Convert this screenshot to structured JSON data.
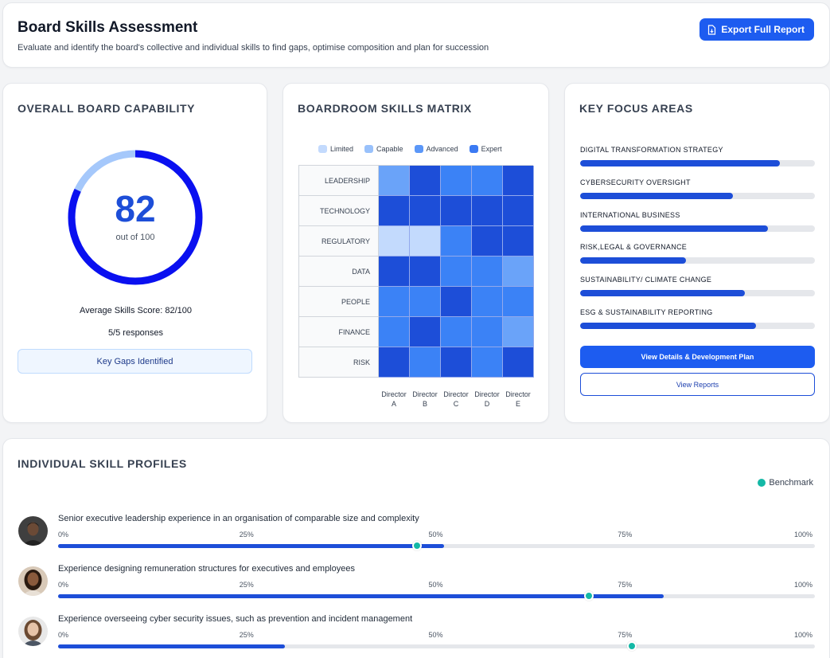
{
  "header": {
    "title": "Board Skills Assessment",
    "subtitle": "Evaluate and identify the board's collective and individual skills to find gaps, optimise composition and plan for succession",
    "export_label": "Export Full Report"
  },
  "capability": {
    "title": "OVERALL BOARD CAPABILITY",
    "score": "82",
    "score_sub": "out of 100",
    "score_fraction": 0.82,
    "avg_label": "Average Skills Score: 82/100",
    "responses": "5/5 responses",
    "gaps_button": "Key Gaps Identified",
    "colors": {
      "fill": "#0a10f0",
      "track": "#a5c8fb"
    }
  },
  "matrix": {
    "title": "BOARDROOM SKILLS MATRIX",
    "legend": [
      {
        "label": "Limited",
        "color": "#c3dafd"
      },
      {
        "label": "Capable",
        "color": "#99c1fb"
      },
      {
        "label": "Advanced",
        "color": "#5b97f8"
      },
      {
        "label": "Expert",
        "color": "#3b7af3"
      }
    ],
    "rows": [
      "LEADERSHIP",
      "TECHNOLOGY",
      "REGULATORY",
      "DATA",
      "PEOPLE",
      "FINANCE",
      "RISK"
    ],
    "columns": [
      {
        "line1": "Director",
        "line2": "A"
      },
      {
        "line1": "Director",
        "line2": "B"
      },
      {
        "line1": "Director",
        "line2": "C"
      },
      {
        "line1": "Director",
        "line2": "D"
      },
      {
        "line1": "Director",
        "line2": "E"
      }
    ],
    "cell_colors": [
      [
        "#6aa3f9",
        "#1d4ed8",
        "#3b82f6",
        "#3b82f6",
        "#1d4ed8"
      ],
      [
        "#1d4ed8",
        "#1d4ed8",
        "#1d4ed8",
        "#1d4ed8",
        "#1d4ed8"
      ],
      [
        "#c3dafd",
        "#c3dafd",
        "#3b82f6",
        "#1d4ed8",
        "#1d4ed8"
      ],
      [
        "#1d4ed8",
        "#1d4ed8",
        "#3b82f6",
        "#3b82f6",
        "#6aa3f9"
      ],
      [
        "#3b82f6",
        "#3b82f6",
        "#1d4ed8",
        "#3b82f6",
        "#3b82f6"
      ],
      [
        "#3b82f6",
        "#1d4ed8",
        "#3b82f6",
        "#3b82f6",
        "#6aa3f9"
      ],
      [
        "#1d4ed8",
        "#3b82f6",
        "#1d4ed8",
        "#3b82f6",
        "#1d4ed8"
      ]
    ]
  },
  "focus": {
    "title": "KEY FOCUS AREAS",
    "items": [
      {
        "label": "DIGITAL TRANSFORMATION STRATEGY",
        "value": 0.85
      },
      {
        "label": "CYBERSECURITY OVERSIGHT",
        "value": 0.65
      },
      {
        "label": "INTERNATIONAL BUSINESS",
        "value": 0.8
      },
      {
        "label": "RISK,LEGAL & GOVERNANCE",
        "value": 0.45
      },
      {
        "label": "SUSTAINABILITY/ CLIMATE CHANGE",
        "value": 0.7
      },
      {
        "label": "ESG & SUSTAINABILITY REPORTING",
        "value": 0.75
      }
    ],
    "details_button": "View Details & Development Plan",
    "reports_button": "View Reports"
  },
  "profiles": {
    "title": "INDIVIDUAL SKILL PROFILES",
    "benchmark_label": "Benchmark",
    "ticks": [
      "0%",
      "25%",
      "50%",
      "75%",
      "100%"
    ],
    "items": [
      {
        "text": "Senior executive leadership experience in an organisation of comparable size and complexity",
        "value": 0.51,
        "benchmark": 0.474,
        "avatar": "avatar-man-icon"
      },
      {
        "text": "Experience designing remuneration structures for executives and employees",
        "value": 0.8,
        "benchmark": 0.701,
        "avatar": "avatar-woman-icon"
      },
      {
        "text": "Experience overseeing cyber security issues, such as prevention and incident management",
        "value": 0.3,
        "benchmark": 0.758,
        "avatar": "avatar-woman-icon"
      }
    ]
  }
}
